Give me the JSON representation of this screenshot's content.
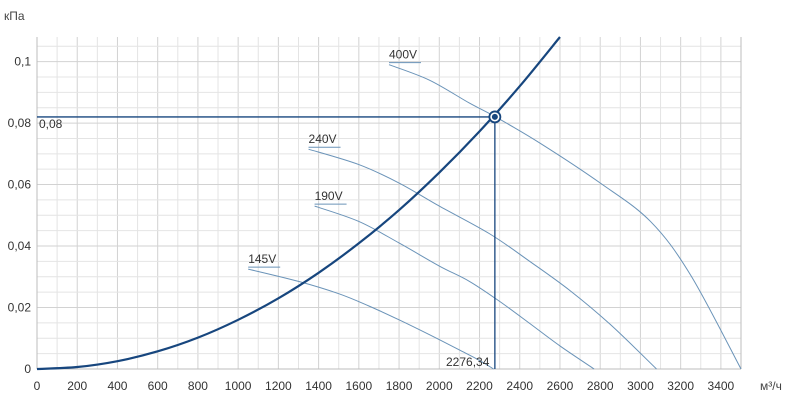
{
  "chart_data": {
    "type": "line",
    "title": "",
    "ylabel": "кПа",
    "xlabel": "м³/ч",
    "xlim": [
      0,
      3500
    ],
    "ylim": [
      0,
      0.108
    ],
    "x_ticks": [
      0,
      200,
      400,
      600,
      800,
      1000,
      1200,
      1400,
      1600,
      1800,
      2000,
      2200,
      2400,
      2600,
      2800,
      3000,
      3200,
      3400
    ],
    "y_ticks": [
      {
        "value": 0,
        "label": "0"
      },
      {
        "value": 0.02,
        "label": "0,02"
      },
      {
        "value": 0.04,
        "label": "0,04"
      },
      {
        "value": 0.06,
        "label": "0,06"
      },
      {
        "value": 0.08,
        "label": "0,08"
      },
      {
        "value": 0.1,
        "label": "0,1"
      }
    ],
    "grid": true,
    "series": [
      {
        "name": "400V",
        "color": "#6a93b8",
        "x": [
          1750,
          1950,
          2150,
          2280,
          2500,
          2800,
          3050,
          3250,
          3500
        ],
        "y": [
          0.099,
          0.094,
          0.0865,
          0.082,
          0.0735,
          0.0605,
          0.048,
          0.0305,
          0
        ]
      },
      {
        "name": "240V",
        "color": "#6a93b8",
        "x": [
          1350,
          1600,
          1800,
          2000,
          2250,
          2450,
          2650,
          2850,
          3080
        ],
        "y": [
          0.0715,
          0.0665,
          0.0605,
          0.053,
          0.044,
          0.035,
          0.0255,
          0.0145,
          0
        ]
      },
      {
        "name": "190V",
        "color": "#6a93b8",
        "x": [
          1380,
          1600,
          1800,
          2000,
          2150,
          2300,
          2450,
          2600,
          2770
        ],
        "y": [
          0.053,
          0.048,
          0.041,
          0.0335,
          0.0285,
          0.022,
          0.0148,
          0.0075,
          0
        ]
      },
      {
        "name": "145V",
        "color": "#6a93b8",
        "x": [
          1050,
          1300,
          1500,
          1650,
          1800,
          1950,
          2100,
          2200,
          2270
        ],
        "y": [
          0.0325,
          0.0285,
          0.0245,
          0.0205,
          0.016,
          0.0112,
          0.0062,
          0.0028,
          0
        ]
      },
      {
        "name": "",
        "color": "#17467e",
        "role": "system-curve",
        "x": [
          0,
          200,
          400,
          600,
          800,
          1000,
          1200,
          1400,
          1600,
          1800,
          2000,
          2200,
          2400,
          2600
        ],
        "y": [
          0,
          0.00064,
          0.00255,
          0.00574,
          0.0102,
          0.016,
          0.023,
          0.0313,
          0.0409,
          0.0517,
          0.0639,
          0.0773,
          0.092,
          0.108
        ]
      }
    ],
    "operating_point": {
      "x": 2276.34,
      "y": 0.082,
      "x_label": "2276,34",
      "y_label": "0,08",
      "color": "#17467e"
    }
  }
}
